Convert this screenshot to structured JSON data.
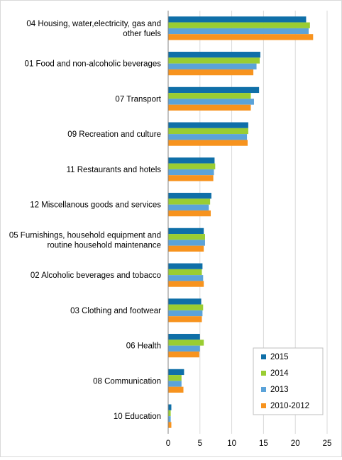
{
  "chart_data": {
    "type": "bar",
    "orientation": "horizontal",
    "categories": [
      [
        "04 Housing, water,electricity, gas and",
        "other fuels"
      ],
      [
        "01 Food and non-alcoholic beverages"
      ],
      [
        "07 Transport"
      ],
      [
        "09 Recreation and culture"
      ],
      [
        "11 Restaurants and hotels"
      ],
      [
        "12 Miscellanous goods and services"
      ],
      [
        "05 Furnishings, household equipment and",
        "routine household maintenance"
      ],
      [
        "02 Alcoholic beverages and tobacco"
      ],
      [
        "03 Clothing and footwear"
      ],
      [
        "06 Health"
      ],
      [
        "08 Communication"
      ],
      [
        "10 Education"
      ]
    ],
    "series": [
      {
        "name": "2015",
        "color": "#0f6fa8",
        "values": [
          21.7,
          14.5,
          14.3,
          12.6,
          7.3,
          6.8,
          5.6,
          5.4,
          5.2,
          5.0,
          2.5,
          0.5
        ]
      },
      {
        "name": "2014",
        "color": "#9acd32",
        "values": [
          22.3,
          14.4,
          13.0,
          12.6,
          7.4,
          6.6,
          5.8,
          5.3,
          5.5,
          5.6,
          2.1,
          0.4
        ]
      },
      {
        "name": "2013",
        "color": "#5ba3d9",
        "values": [
          22.1,
          13.9,
          13.5,
          12.4,
          7.2,
          6.4,
          5.8,
          5.5,
          5.4,
          5.0,
          2.1,
          0.4
        ]
      },
      {
        "name": "2010-2012",
        "color": "#f7931e",
        "values": [
          22.8,
          13.4,
          13.0,
          12.5,
          7.1,
          6.7,
          5.6,
          5.6,
          5.3,
          4.9,
          2.4,
          0.5
        ]
      }
    ],
    "xlim": [
      0,
      25
    ],
    "xticks": [
      0,
      5,
      10,
      15,
      20,
      25
    ],
    "grid": true,
    "legend": "bottom-right",
    "title": "",
    "xlabel": "",
    "ylabel": ""
  }
}
